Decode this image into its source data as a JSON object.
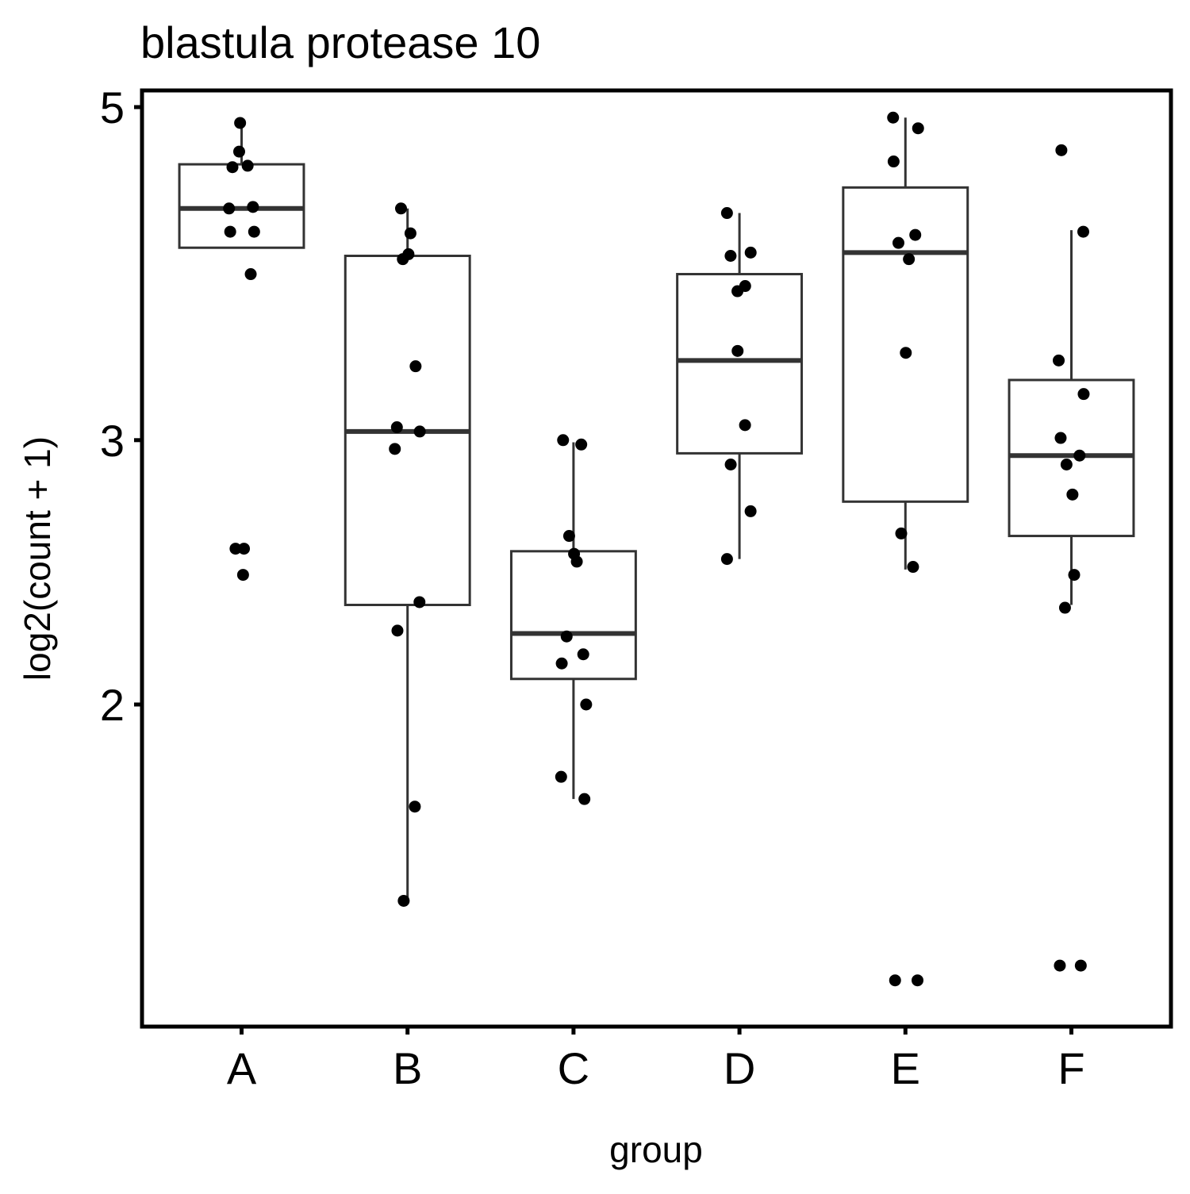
{
  "chart_data": {
    "type": "box",
    "title": "blastula protease 10",
    "xlabel": "group",
    "ylabel": "log2(count + 1)",
    "y_scale": "log2 axis of log2(count + 1)",
    "y_ticks": [
      {
        "label": "2",
        "value": 2
      },
      {
        "label": "3",
        "value": 3
      },
      {
        "label": "5",
        "value": 5
      }
    ],
    "ylim": [
      1.18,
      5.08
    ],
    "categories": [
      "A",
      "B",
      "C",
      "D",
      "E",
      "F"
    ],
    "grid": false,
    "legend": "none",
    "colors": {
      "box": "#333333",
      "point": "#000000",
      "panel": "#000000"
    },
    "boxes": [
      {
        "group": "A",
        "lower_whisker": 4.03,
        "q1": 4.03,
        "median": 4.28,
        "q3": 4.58,
        "upper_whisker": 4.88
      },
      {
        "group": "B",
        "lower_whisker": 1.48,
        "q1": 2.33,
        "median": 3.04,
        "q3": 3.98,
        "upper_whisker": 4.28
      },
      {
        "group": "C",
        "lower_whisker": 1.73,
        "q1": 2.08,
        "median": 2.23,
        "q3": 2.53,
        "upper_whisker": 2.99
      },
      {
        "group": "D",
        "lower_whisker": 2.5,
        "q1": 2.94,
        "median": 3.39,
        "q3": 3.87,
        "upper_whisker": 4.25
      },
      {
        "group": "E",
        "lower_whisker": 2.46,
        "q1": 2.73,
        "median": 4.0,
        "q3": 4.42,
        "upper_whisker": 4.92
      },
      {
        "group": "F",
        "lower_whisker": 2.33,
        "q1": 2.59,
        "median": 2.93,
        "q3": 3.29,
        "upper_whisker": 4.14
      }
    ],
    "points": [
      {
        "group": "A",
        "values": [
          4.88,
          4.67,
          4.57,
          4.56,
          4.29,
          4.28,
          4.13,
          4.13,
          3.87,
          2.54,
          2.54,
          2.44
        ]
      },
      {
        "group": "B",
        "values": [
          4.28,
          4.12,
          3.99,
          3.96,
          3.36,
          3.06,
          3.04,
          2.96,
          2.34,
          2.24,
          1.71,
          1.48
        ]
      },
      {
        "group": "C",
        "values": [
          3.0,
          2.98,
          2.59,
          2.52,
          2.49,
          2.22,
          2.16,
          2.13,
          2.0,
          1.79,
          1.73
        ]
      },
      {
        "group": "D",
        "values": [
          4.25,
          4.0,
          3.98,
          3.8,
          3.77,
          3.44,
          3.07,
          2.89,
          2.69,
          2.5
        ]
      },
      {
        "group": "E",
        "values": [
          4.92,
          4.84,
          4.6,
          4.11,
          4.06,
          3.96,
          3.43,
          2.6,
          2.47,
          1.31,
          1.31
        ]
      },
      {
        "group": "F",
        "values": [
          4.68,
          4.13,
          3.39,
          3.22,
          3.01,
          2.93,
          2.89,
          2.76,
          2.44,
          2.32,
          1.34,
          1.34
        ]
      }
    ]
  }
}
